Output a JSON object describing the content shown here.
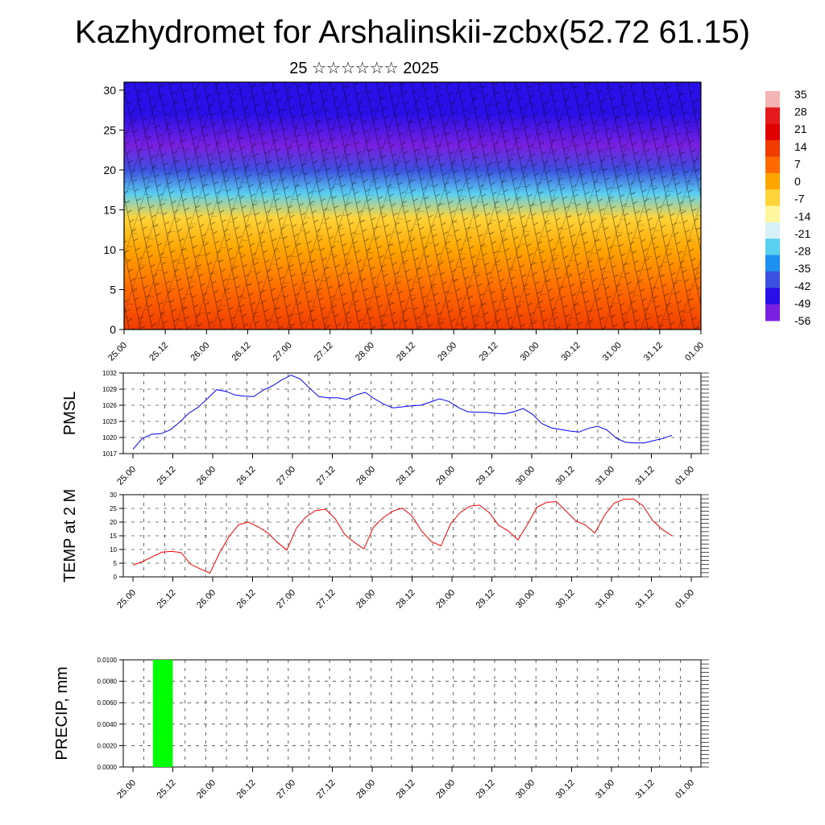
{
  "title": "Kazhydromet for Arshalinskii-zcbx(52.72 61.15)",
  "subtitle": "25 ☆☆☆☆☆☆ 2025",
  "time_ticks": [
    "25.00",
    "25.12",
    "26.00",
    "26.12",
    "27.00",
    "27.12",
    "28.00",
    "28.12",
    "29.00",
    "29.12",
    "30.00",
    "30.12",
    "31.00",
    "31.12",
    "01.00"
  ],
  "chart_data": [
    {
      "type": "heatmap",
      "title": "",
      "xlabel": "",
      "ylabel": "",
      "y_ticks": [
        0,
        5,
        10,
        15,
        20,
        25,
        30
      ],
      "ylim": [
        0,
        31
      ],
      "colorbar_labels": [
        "35",
        "28",
        "21",
        "14",
        "7",
        "0",
        "-7",
        "-14",
        "-21",
        "-28",
        "-35",
        "-42",
        "-49",
        "-56"
      ],
      "colorbar_colors": [
        "#f5b5b5",
        "#e41a1c",
        "#e00000",
        "#f03c00",
        "#ff6a00",
        "#ffa500",
        "#ffd43a",
        "#fff7a0",
        "#d8f0f8",
        "#5ad0f0",
        "#1e90f0",
        "#3c50e0",
        "#2a10e8",
        "#7a20e0"
      ],
      "temperature_profile": [
        {
          "height": 0,
          "value": 14
        },
        {
          "height": 5,
          "value": 7
        },
        {
          "height": 10,
          "value": 0
        },
        {
          "height": 14,
          "value": -10
        },
        {
          "height": 17,
          "value": -28
        },
        {
          "height": 20,
          "value": -42
        },
        {
          "height": 23,
          "value": -56
        },
        {
          "height": 27,
          "value": -49
        },
        {
          "height": 31,
          "value": -49
        }
      ],
      "overlay": "wind barbs"
    },
    {
      "type": "line",
      "ylabel": "PMSL",
      "ylim": [
        1017,
        1032
      ],
      "y_ticks": [
        1017,
        1020,
        1023,
        1026,
        1029,
        1032
      ],
      "series": [
        {
          "color": "#0000ff",
          "values": [
            1017.8,
            1019.8,
            1020.6,
            1020.7,
            1021.4,
            1022.8,
            1024.5,
            1025.6,
            1027.2,
            1028.9,
            1028.6,
            1027.9,
            1027.7,
            1027.6,
            1028.8,
            1029.6,
            1030.7,
            1031.6,
            1030.9,
            1029.2,
            1027.6,
            1027.4,
            1027.4,
            1027.1,
            1027.9,
            1028.4,
            1027.2,
            1026.2,
            1025.5,
            1025.7,
            1025.9,
            1026.0,
            1026.6,
            1027.2,
            1026.7,
            1025.6,
            1024.8,
            1024.7,
            1024.7,
            1024.5,
            1024.4,
            1024.8,
            1025.4,
            1024.3,
            1022.6,
            1021.8,
            1021.5,
            1021.2,
            1021.0,
            1021.7,
            1022.1,
            1021.4,
            1019.9,
            1019.1,
            1019.0,
            1019.0,
            1019.4,
            1019.8,
            1020.4
          ]
        }
      ]
    },
    {
      "type": "line",
      "ylabel": "TEMP at 2 M",
      "ylim": [
        0,
        30
      ],
      "y_ticks": [
        0,
        5,
        10,
        15,
        20,
        25,
        30
      ],
      "series": [
        {
          "color": "#ff0000",
          "values": [
            4.3,
            5.6,
            7.3,
            9.0,
            9.3,
            8.9,
            4.6,
            2.9,
            1.4,
            8.7,
            14.8,
            19.1,
            20.0,
            18.3,
            16.1,
            12.6,
            9.8,
            17.9,
            22.0,
            24.2,
            24.7,
            21.3,
            15.5,
            12.6,
            10.2,
            18.2,
            21.6,
            24.0,
            25.1,
            22.2,
            16.7,
            12.9,
            11.3,
            19.3,
            23.5,
            25.8,
            26.2,
            23.5,
            18.8,
            16.8,
            13.5,
            19.2,
            25.5,
            27.2,
            27.5,
            24.0,
            20.5,
            18.9,
            16.0,
            22.5,
            26.9,
            28.3,
            28.4,
            25.9,
            20.6,
            17.3,
            15.0
          ]
        }
      ]
    },
    {
      "type": "bar",
      "ylabel": "PRECIP, mm",
      "ylim": [
        0,
        0.01
      ],
      "y_ticks": [
        "0.0000",
        "0.0020",
        "0.0040",
        "0.0060",
        "0.0080",
        "0.0100"
      ],
      "bar_color": "#00ff00",
      "bars": [
        {
          "start": "25.06",
          "end": "25.12",
          "value": 0.01
        }
      ]
    }
  ]
}
